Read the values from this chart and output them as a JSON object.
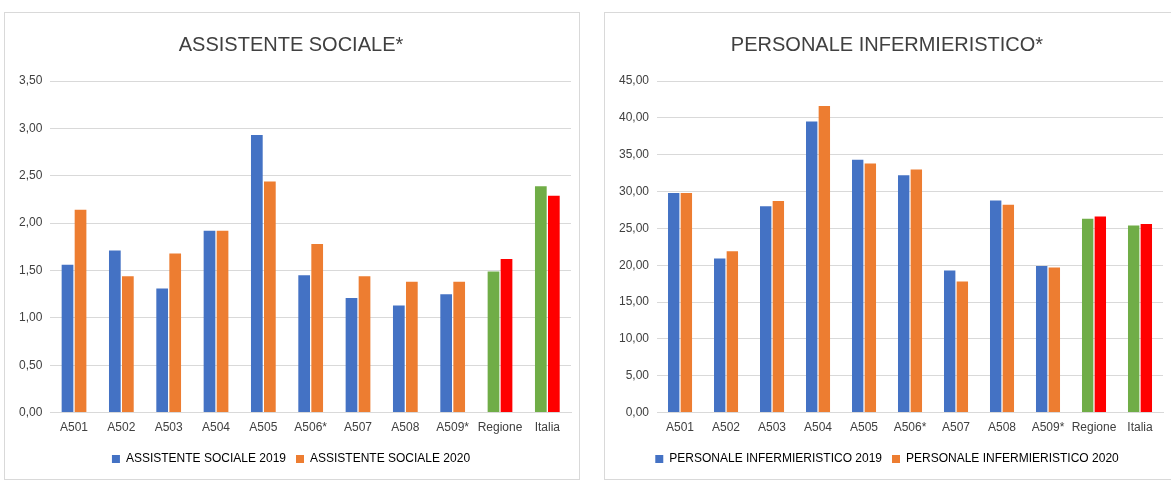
{
  "chart_data": [
    {
      "type": "bar",
      "title": "ASSISTENTE SOCIALE*",
      "categories": [
        "A501",
        "A502",
        "A503",
        "A504",
        "A505",
        "A506*",
        "A507",
        "A508",
        "A509*",
        "Regione",
        "Italia"
      ],
      "series": [
        {
          "name": "ASSISTENTE SOCIALE 2019",
          "color": "#4472c4",
          "colors": [
            "#4472c4",
            "#4472c4",
            "#4472c4",
            "#4472c4",
            "#4472c4",
            "#4472c4",
            "#4472c4",
            "#4472c4",
            "#4472c4",
            "#70ad47",
            "#70ad47"
          ],
          "values": [
            1.56,
            1.71,
            1.31,
            1.92,
            2.93,
            1.45,
            1.21,
            1.13,
            1.25,
            1.49,
            2.39
          ]
        },
        {
          "name": "ASSISTENTE SOCIALE 2020",
          "color": "#ed7d31",
          "colors": [
            "#ed7d31",
            "#ed7d31",
            "#ed7d31",
            "#ed7d31",
            "#ed7d31",
            "#ed7d31",
            "#ed7d31",
            "#ed7d31",
            "#ed7d31",
            "#ff0000",
            "#ff0000"
          ],
          "values": [
            2.14,
            1.44,
            1.68,
            1.92,
            2.44,
            1.78,
            1.44,
            1.38,
            1.38,
            1.62,
            2.29
          ]
        }
      ],
      "ylim": [
        0,
        3.5
      ],
      "yticks": [
        {
          "value": 0,
          "label": "0,00"
        },
        {
          "value": 0.5,
          "label": "0,50"
        },
        {
          "value": 1,
          "label": "1,00"
        },
        {
          "value": 1.5,
          "label": "1,50"
        },
        {
          "value": 2,
          "label": "2,00"
        },
        {
          "value": 2.5,
          "label": "2,50"
        },
        {
          "value": 3,
          "label": "3,00"
        },
        {
          "value": 3.5,
          "label": "3,50"
        }
      ],
      "grid": "y",
      "legend": "bottom"
    },
    {
      "type": "bar",
      "title": "PERSONALE INFERMIERISTICO*",
      "categories": [
        "A501",
        "A502",
        "A503",
        "A504",
        "A505",
        "A506*",
        "A507",
        "A508",
        "A509*",
        "Regione",
        "Italia"
      ],
      "series": [
        {
          "name": "PERSONALE INFERMIERISTICO 2019",
          "color": "#4472c4",
          "colors": [
            "#4472c4",
            "#4472c4",
            "#4472c4",
            "#4472c4",
            "#4472c4",
            "#4472c4",
            "#4472c4",
            "#4472c4",
            "#4472c4",
            "#70ad47",
            "#70ad47"
          ],
          "values": [
            29.8,
            20.9,
            28.0,
            39.5,
            34.3,
            32.2,
            19.3,
            28.8,
            19.9,
            26.3,
            25.4
          ]
        },
        {
          "name": "PERSONALE INFERMIERISTICO 2020",
          "color": "#ed7d31",
          "colors": [
            "#ed7d31",
            "#ed7d31",
            "#ed7d31",
            "#ed7d31",
            "#ed7d31",
            "#ed7d31",
            "#ed7d31",
            "#ed7d31",
            "#ed7d31",
            "#ff0000",
            "#ff0000"
          ],
          "values": [
            29.8,
            21.9,
            28.7,
            41.6,
            33.8,
            33.0,
            17.8,
            28.2,
            19.7,
            26.6,
            25.6
          ]
        }
      ],
      "ylim": [
        0,
        45
      ],
      "yticks": [
        {
          "value": 0,
          "label": "0,00"
        },
        {
          "value": 5,
          "label": "5,00"
        },
        {
          "value": 10,
          "label": "10,00"
        },
        {
          "value": 15,
          "label": "15,00"
        },
        {
          "value": 20,
          "label": "20,00"
        },
        {
          "value": 25,
          "label": "25,00"
        },
        {
          "value": 30,
          "label": "30,00"
        },
        {
          "value": 35,
          "label": "35,00"
        },
        {
          "value": 40,
          "label": "40,00"
        },
        {
          "value": 45,
          "label": "45,00"
        }
      ],
      "grid": "y",
      "legend": "bottom"
    }
  ]
}
